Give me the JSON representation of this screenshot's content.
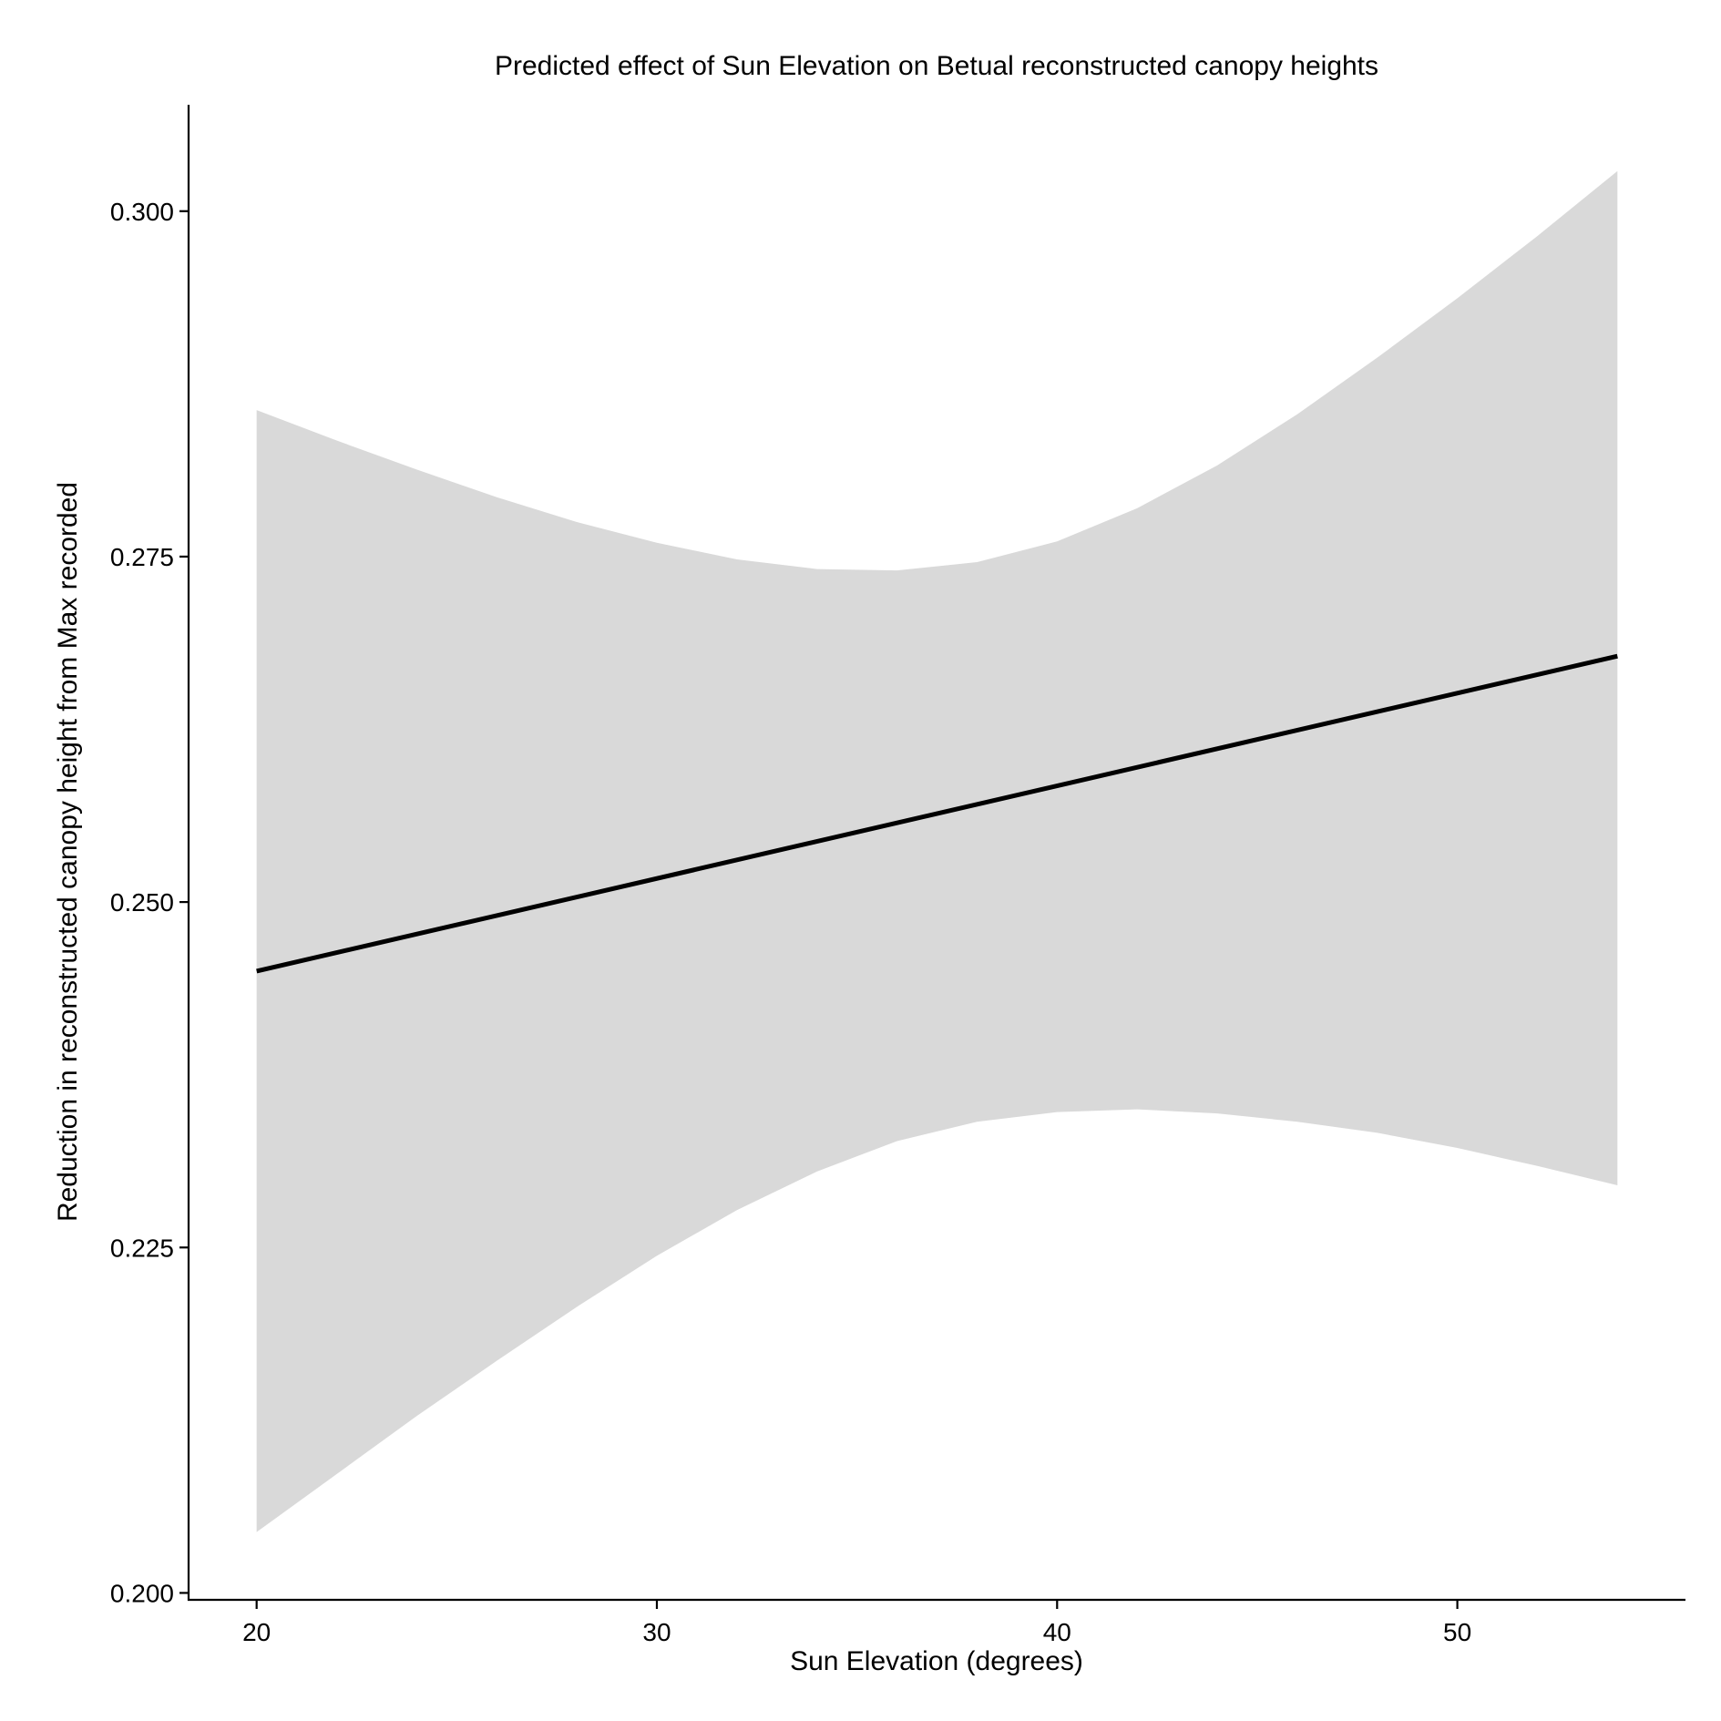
{
  "chart_data": {
    "type": "line",
    "title": "Predicted effect of Sun Elevation on Betual reconstructed canopy heights",
    "xlabel": "Sun Elevation (degrees)",
    "ylabel": "Reduction in reconstructed canopy height from Max recorded",
    "xlim": [
      18.3,
      55.7
    ],
    "ylim": [
      0.1995,
      0.3077
    ],
    "xticks": [
      20,
      30,
      40,
      50
    ],
    "xtick_labels": [
      "20",
      "30",
      "40",
      "50"
    ],
    "yticks": [
      0.2,
      0.225,
      0.25,
      0.275,
      0.3
    ],
    "ytick_labels": [
      "0.200",
      "0.225",
      "0.250",
      "0.275",
      "0.300"
    ],
    "grid": false,
    "legend": "none",
    "series": [
      {
        "x": [
          20,
          54
        ],
        "y": [
          0.245,
          0.2678
        ]
      }
    ],
    "confidence_band": {
      "x": [
        20,
        22,
        24,
        26,
        28,
        30,
        32,
        34,
        36,
        38,
        40,
        42,
        44,
        46,
        48,
        50,
        52,
        54
      ],
      "upper": [
        0.2856,
        0.2834,
        0.2813,
        0.2793,
        0.2775,
        0.276,
        0.2748,
        0.2741,
        0.274,
        0.2746,
        0.2761,
        0.2785,
        0.2816,
        0.2853,
        0.2894,
        0.2937,
        0.2982,
        0.3029
      ],
      "lower": [
        0.2044,
        0.2086,
        0.2128,
        0.2168,
        0.2207,
        0.2244,
        0.2277,
        0.2305,
        0.2327,
        0.2341,
        0.2348,
        0.235,
        0.2347,
        0.2341,
        0.2333,
        0.2322,
        0.2309,
        0.2295
      ]
    },
    "colors": {
      "line": "#000000",
      "band": "#d9d9d9",
      "axis": "#000000"
    }
  }
}
